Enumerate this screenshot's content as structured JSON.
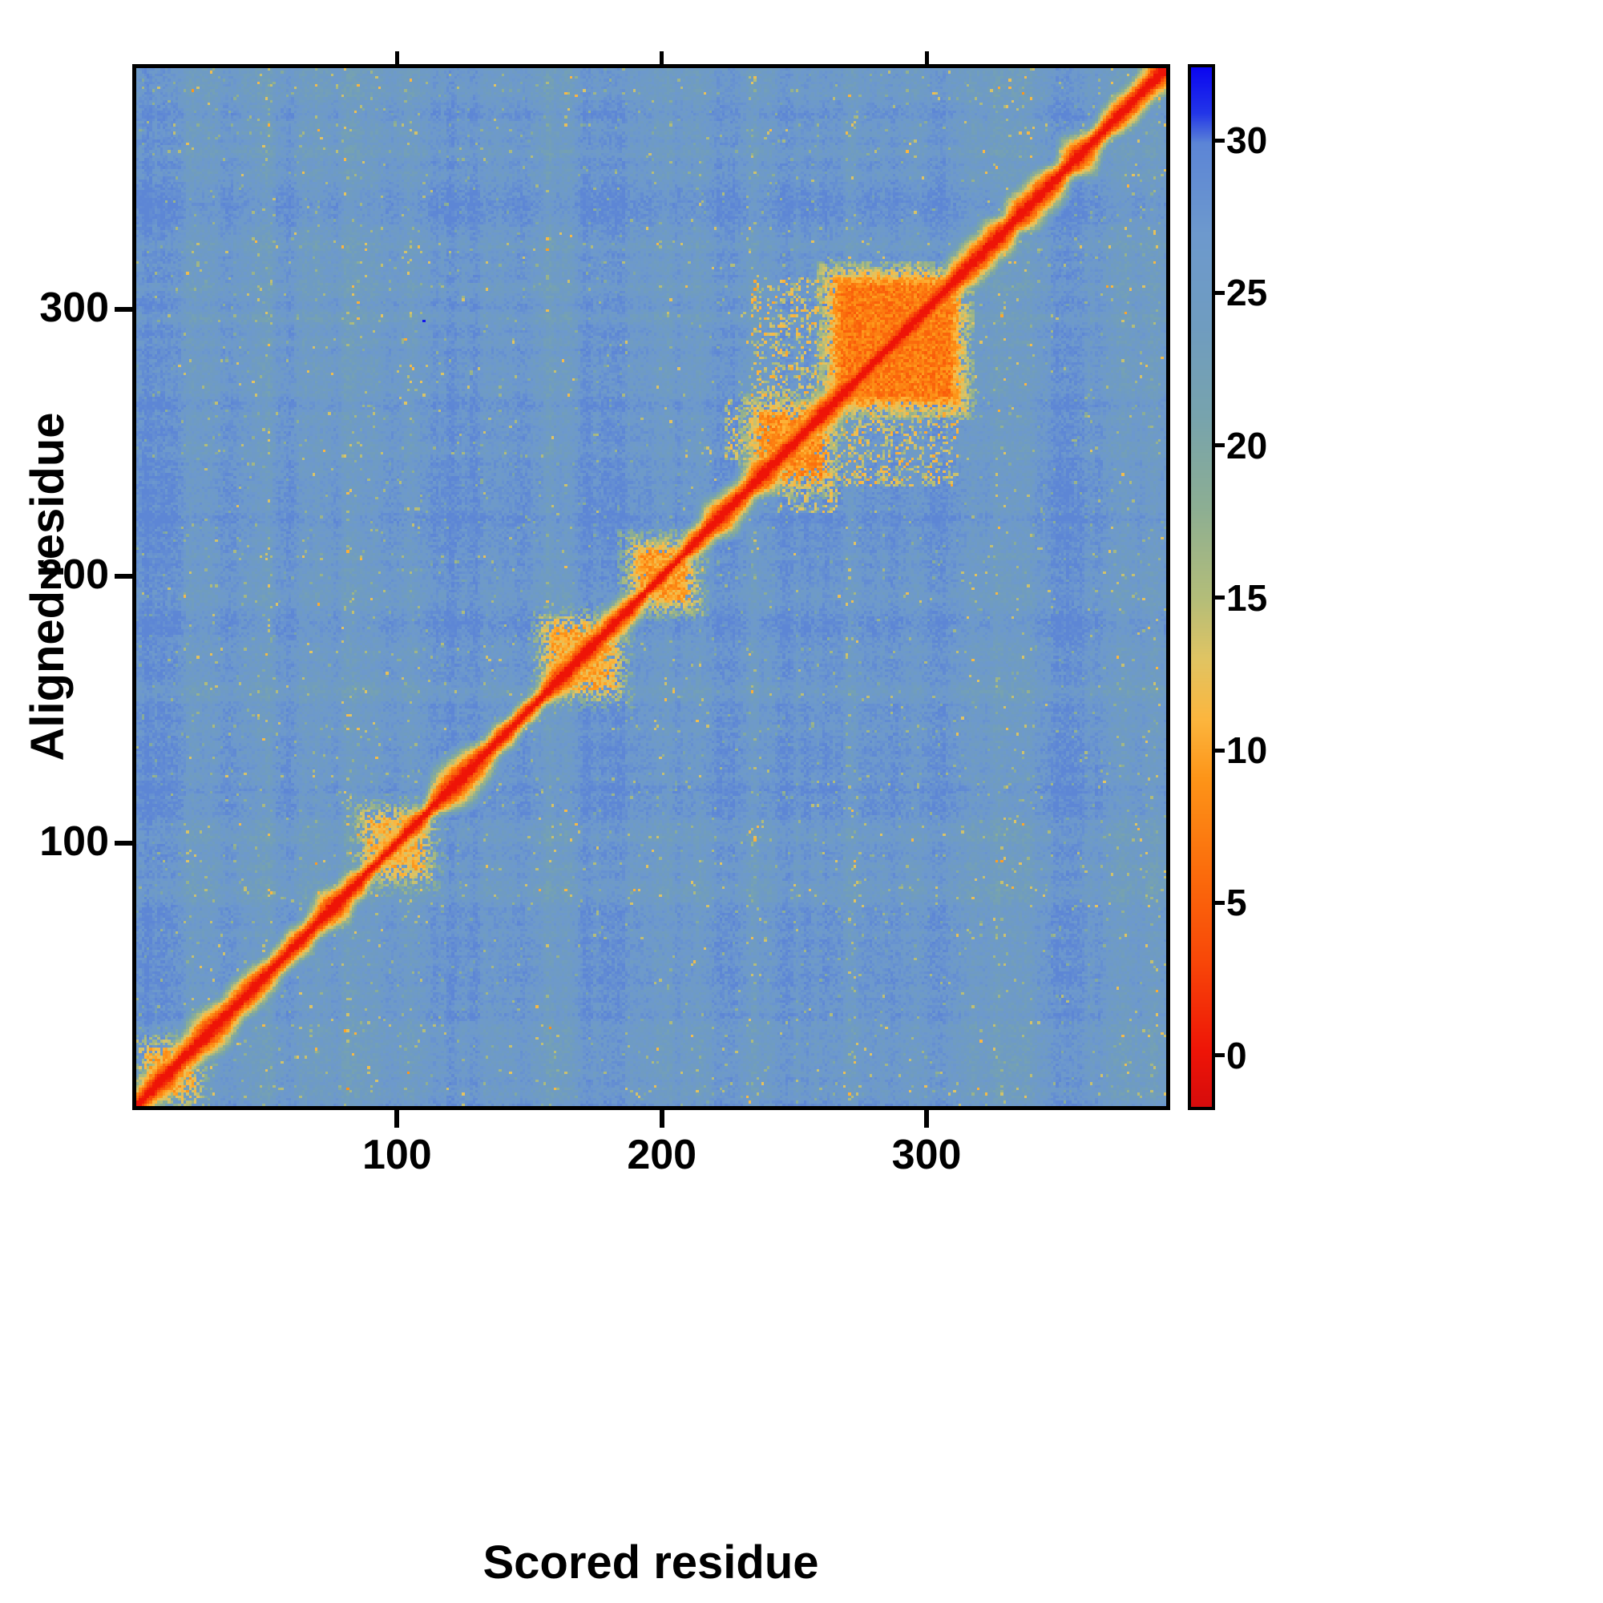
{
  "figure": {
    "background": "#ffffff",
    "frame_color": "#000000"
  },
  "chart_data": {
    "type": "heatmap",
    "title": "",
    "xlabel": "Scored residue",
    "ylabel": "Aligned residue",
    "x_ticks": [
      100,
      200,
      300
    ],
    "y_ticks": [
      100,
      200,
      300
    ],
    "axis_min": 1,
    "axis_max": 392,
    "grid_size": 392,
    "value_min": 0,
    "value_max": 32,
    "background_value": 26.5,
    "diagonal_value": 0,
    "legend_position": "right",
    "colorbar_ticks": [
      0,
      5,
      10,
      15,
      20,
      25,
      30
    ],
    "colorbar_range": [
      -1.8,
      32.5
    ],
    "colormap_stops": [
      {
        "v": -1.8,
        "color": "#d60c0c"
      },
      {
        "v": 0,
        "color": "#ee1407"
      },
      {
        "v": 3,
        "color": "#f84708"
      },
      {
        "v": 6,
        "color": "#fb6d0c"
      },
      {
        "v": 9,
        "color": "#fd9418"
      },
      {
        "v": 11,
        "color": "#fcb63e"
      },
      {
        "v": 13,
        "color": "#e0c463"
      },
      {
        "v": 15,
        "color": "#b3bd79"
      },
      {
        "v": 18,
        "color": "#8cae93"
      },
      {
        "v": 21,
        "color": "#77a3ad"
      },
      {
        "v": 24,
        "color": "#6f9cc0"
      },
      {
        "v": 27,
        "color": "#6d99cd"
      },
      {
        "v": 30,
        "color": "#5c85d6"
      },
      {
        "v": 31,
        "color": "#2336e8"
      },
      {
        "v": 32.5,
        "color": "#0b06f0"
      }
    ],
    "domains": [
      {
        "start": 1,
        "end": 24,
        "value": 8,
        "density": 0.45
      },
      {
        "start": 84,
        "end": 112,
        "value": 9,
        "density": 0.5
      },
      {
        "start": 154,
        "end": 184,
        "value": 8,
        "density": 0.55
      },
      {
        "start": 188,
        "end": 212,
        "value": 7,
        "density": 0.7
      },
      {
        "start": 234,
        "end": 264,
        "value": 6,
        "density": 0.6
      },
      {
        "start": 264,
        "end": 313,
        "value": 4.5,
        "density": 0.88
      }
    ],
    "cross_regions": [
      {
        "a": [
          234,
          262
        ],
        "b": [
          264,
          312
        ],
        "value": 10,
        "density": 0.28
      },
      {
        "a": [
          224,
          242
        ],
        "b": [
          244,
          266
        ],
        "value": 11,
        "density": 0.3
      }
    ],
    "outliers": [
      {
        "x": 109,
        "y": 296,
        "value": 32
      }
    ]
  }
}
